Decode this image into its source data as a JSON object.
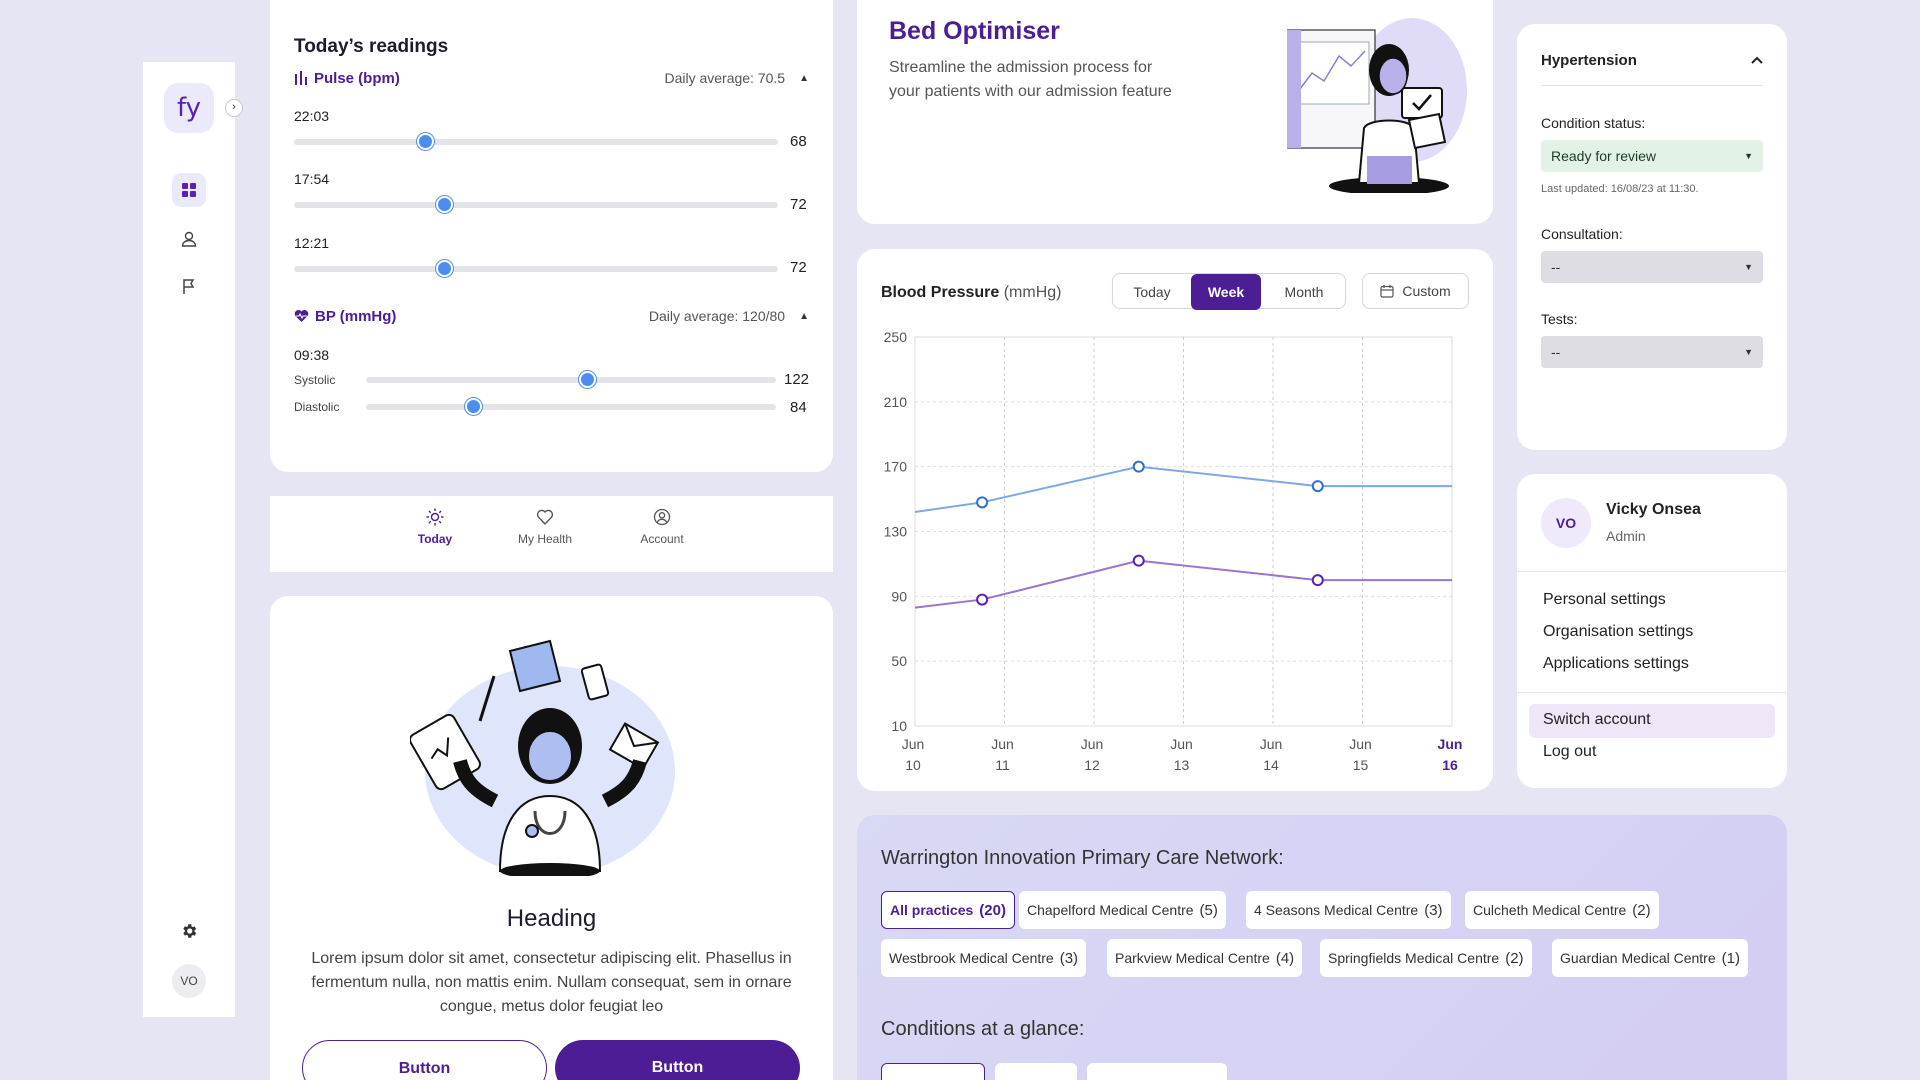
{
  "sidebar": {
    "logo_text": "fy",
    "collapse_icon": "›",
    "avatar": "VO",
    "icons": [
      "grid-icon",
      "user-icon",
      "flag-icon",
      "gear-icon"
    ]
  },
  "readings": {
    "title": "Today’s readings",
    "pulse": {
      "label": "Pulse (bpm)",
      "avg": "Daily average: 70.5",
      "entries": [
        {
          "time": "22:03",
          "value": "68",
          "fraction": 0.27
        },
        {
          "time": "17:54",
          "value": "72",
          "fraction": 0.31
        },
        {
          "time": "12:21",
          "value": "72",
          "fraction": 0.31
        }
      ]
    },
    "bp": {
      "label": "BP (mmHg)",
      "avg": "Daily average: 120/80",
      "time": "09:38",
      "systolic_label": "Systolic",
      "systolic_value": "122",
      "systolic_fraction": 0.54,
      "diastolic_label": "Diastolic",
      "diastolic_value": "84",
      "diastolic_fraction": 0.26
    }
  },
  "bottom_nav": {
    "items": [
      "Today",
      "My Health",
      "Account"
    ],
    "active_color": "#4c1d95"
  },
  "hero": {
    "heading": "Heading",
    "body": "Lorem ipsum dolor sit amet, consectetur adipiscing elit. Phasellus in fermentum nulla, non mattis enim. Nullam consequat, sem in ornare congue, metus dolor feugiat leo",
    "button_secondary": "Button",
    "button_primary": "Button"
  },
  "bed": {
    "title": "Bed Optimiser",
    "desc_line1": "Streamline the admission process for",
    "desc_line2": "your patients with our admission feature"
  },
  "bp_chart": {
    "title": "Blood Pressure",
    "unit": "(mmHg)",
    "ranges": [
      "Today",
      "Week",
      "Month"
    ],
    "active_range": "Week",
    "custom_label": "Custom"
  },
  "chart_data": {
    "type": "line",
    "title": "Blood Pressure",
    "ylabel": "mmHg",
    "x": [
      "Jun 10",
      "Jun 11",
      "Jun 12",
      "Jun 13",
      "Jun 14",
      "Jun 15",
      "Jun 16"
    ],
    "x_top": [
      "Jun",
      "Jun",
      "Jun",
      "Jun",
      "Jun",
      "Jun",
      "Jun"
    ],
    "x_bottom": [
      "10",
      "11",
      "12",
      "13",
      "14",
      "15",
      "16"
    ],
    "ylim": [
      10,
      250
    ],
    "yticks": [
      10,
      50,
      90,
      130,
      170,
      210,
      250
    ],
    "grid": true,
    "series": [
      {
        "color": "#7ea8e4",
        "points": [
          [
            10.0,
            142
          ],
          [
            10.75,
            148
          ],
          [
            12.5,
            170
          ],
          [
            14.5,
            158
          ],
          [
            16.0,
            158
          ]
        ],
        "markers": [
          1,
          2,
          3
        ]
      },
      {
        "color": "#9b74d0",
        "points": [
          [
            10.0,
            83
          ],
          [
            10.75,
            88
          ],
          [
            12.5,
            112
          ],
          [
            14.5,
            100
          ],
          [
            16.0,
            100
          ]
        ],
        "markers": [
          1,
          2,
          3
        ]
      }
    ],
    "highlight_x": "16"
  },
  "condition": {
    "title": "Hypertension",
    "status_label": "Condition status:",
    "status_value": "Ready for review",
    "updated": "Last updated: 16/08/23 at 11:30.",
    "consult_label": "Consultation:",
    "consult_value": "--",
    "tests_label": "Tests:",
    "tests_value": "--"
  },
  "account": {
    "initials": "VO",
    "name": "Vicky Onsea",
    "role": "Admin",
    "menu": [
      "Personal settings",
      "Organisation settings",
      "Applications settings"
    ],
    "switch": "Switch account",
    "logout": "Log out"
  },
  "network": {
    "title": "Warrington Innovation Primary Care Network:",
    "chips_row1": [
      {
        "name": "All practices",
        "count": "(20)"
      },
      {
        "name": "Chapelford Medical Centre",
        "count": "(5)"
      },
      {
        "name": "4 Seasons Medical Centre",
        "count": "(3)"
      },
      {
        "name": "Culcheth Medical Centre",
        "count": "(2)"
      }
    ],
    "chips_row2": [
      {
        "name": "Westbrook Medical Centre",
        "count": "(3)"
      },
      {
        "name": "Parkview Medical Centre",
        "count": "(4)"
      },
      {
        "name": "Springfields Medical Centre",
        "count": "(2)"
      },
      {
        "name": "Guardian Medical Centre",
        "count": "(1)"
      }
    ],
    "conditions_title": "Conditions at a glance:"
  }
}
